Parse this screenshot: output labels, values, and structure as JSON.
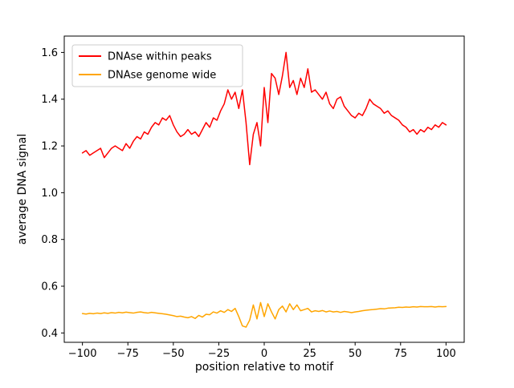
{
  "figure": {
    "background": "#ffffff",
    "axes_edge_color": "#000000",
    "legend_edge_color": "#cccccc"
  },
  "chart_data": {
    "type": "line",
    "title": "",
    "xlabel": "position relative to motif",
    "ylabel": "average DNA signal",
    "xlim": [
      -110,
      110
    ],
    "ylim": [
      0.36,
      1.67
    ],
    "grid": false,
    "legend_position": "upper left",
    "x_tick_values": [
      -100,
      -75,
      -50,
      -25,
      0,
      25,
      50,
      75,
      100
    ],
    "x_tick_labels": [
      "−100",
      "−75",
      "−50",
      "−25",
      "0",
      "25",
      "50",
      "75",
      "100"
    ],
    "y_tick_values": [
      0.4,
      0.6,
      0.8,
      1.0,
      1.2,
      1.4,
      1.6
    ],
    "y_tick_labels": [
      "0.4",
      "0.6",
      "0.8",
      "1.0",
      "1.2",
      "1.4",
      "1.6"
    ],
    "x_start": -100,
    "x_step": 2,
    "series": [
      {
        "id": "dnase-within-peaks",
        "name": "DNAse within peaks",
        "color": "#ff0000",
        "values": [
          1.17,
          1.18,
          1.16,
          1.17,
          1.18,
          1.19,
          1.15,
          1.17,
          1.19,
          1.2,
          1.19,
          1.18,
          1.21,
          1.19,
          1.22,
          1.24,
          1.23,
          1.26,
          1.25,
          1.28,
          1.3,
          1.29,
          1.32,
          1.31,
          1.33,
          1.29,
          1.26,
          1.24,
          1.25,
          1.27,
          1.25,
          1.26,
          1.24,
          1.27,
          1.3,
          1.28,
          1.32,
          1.31,
          1.35,
          1.38,
          1.44,
          1.4,
          1.43,
          1.36,
          1.44,
          1.3,
          1.12,
          1.25,
          1.3,
          1.2,
          1.45,
          1.3,
          1.51,
          1.49,
          1.42,
          1.5,
          1.6,
          1.45,
          1.48,
          1.42,
          1.49,
          1.45,
          1.53,
          1.43,
          1.44,
          1.42,
          1.4,
          1.43,
          1.38,
          1.36,
          1.4,
          1.41,
          1.37,
          1.35,
          1.33,
          1.32,
          1.34,
          1.33,
          1.36,
          1.4,
          1.38,
          1.37,
          1.36,
          1.34,
          1.35,
          1.33,
          1.32,
          1.31,
          1.29,
          1.28,
          1.26,
          1.27,
          1.25,
          1.27,
          1.26,
          1.28,
          1.27,
          1.29,
          1.28,
          1.3,
          1.29
        ]
      },
      {
        "id": "dnase-genome-wide",
        "name": "DNAse genome wide",
        "color": "#ffa500",
        "values": [
          0.483,
          0.481,
          0.484,
          0.482,
          0.485,
          0.483,
          0.486,
          0.484,
          0.487,
          0.485,
          0.488,
          0.486,
          0.489,
          0.487,
          0.485,
          0.488,
          0.49,
          0.487,
          0.485,
          0.488,
          0.486,
          0.484,
          0.482,
          0.48,
          0.477,
          0.474,
          0.47,
          0.472,
          0.468,
          0.465,
          0.47,
          0.462,
          0.475,
          0.468,
          0.48,
          0.478,
          0.49,
          0.485,
          0.495,
          0.488,
          0.5,
          0.492,
          0.505,
          0.47,
          0.43,
          0.425,
          0.455,
          0.52,
          0.46,
          0.53,
          0.47,
          0.525,
          0.49,
          0.46,
          0.5,
          0.515,
          0.49,
          0.525,
          0.5,
          0.52,
          0.495,
          0.5,
          0.505,
          0.49,
          0.495,
          0.492,
          0.496,
          0.49,
          0.494,
          0.49,
          0.492,
          0.488,
          0.492,
          0.49,
          0.487,
          0.49,
          0.492,
          0.495,
          0.497,
          0.499,
          0.5,
          0.502,
          0.504,
          0.503,
          0.506,
          0.507,
          0.508,
          0.51,
          0.509,
          0.511,
          0.51,
          0.512,
          0.511,
          0.513,
          0.512,
          0.512,
          0.513,
          0.511,
          0.513,
          0.512,
          0.513
        ]
      }
    ]
  }
}
